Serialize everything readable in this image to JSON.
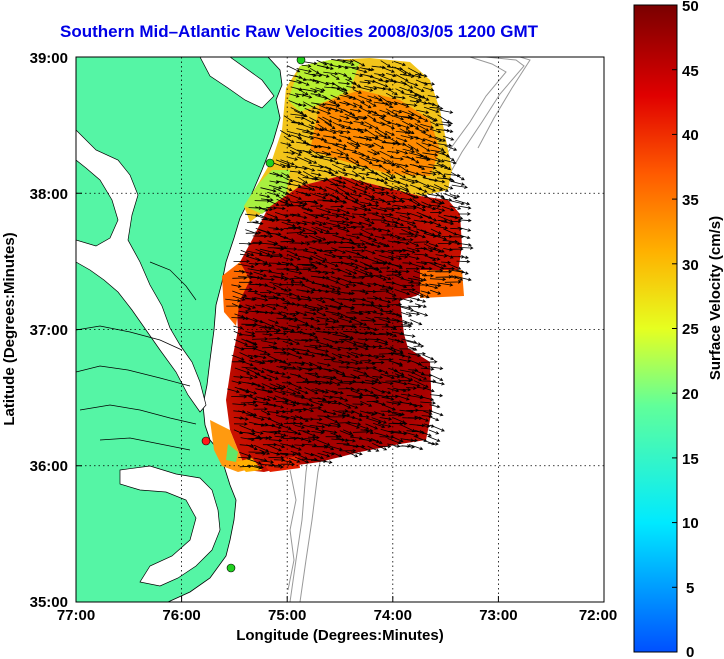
{
  "title": "Southern Mid–Atlantic Raw Velocities 2008/03/05 1200 GMT",
  "x_axis": {
    "label": "Longitude (Degrees:Minutes)",
    "ticks": [
      "77:00",
      "76:00",
      "75:00",
      "74:00",
      "73:00",
      "72:00"
    ]
  },
  "y_axis": {
    "label": "Latitude (Degrees:Minutes)",
    "ticks": [
      "39:00",
      "38:00",
      "37:00",
      "36:00",
      "35:00"
    ]
  },
  "colorbar": {
    "label": "Surface Velocity (cm/s)",
    "ticks": [
      "50",
      "45",
      "40",
      "35",
      "30",
      "25",
      "20",
      "15",
      "10",
      "5",
      "0"
    ],
    "range": [
      0,
      50
    ]
  },
  "colors": {
    "land": "#55f5a5",
    "water": "#ffffff",
    "title": "#0000e6",
    "contours": "#999999",
    "station_green": "#20d020",
    "station_red": "#ff1a1a"
  },
  "chart_data": {
    "type": "heatmap",
    "title": "Southern Mid–Atlantic Raw Velocities 2008/03/05 1200 GMT",
    "xlabel": "Longitude (Degrees:Minutes)",
    "ylabel": "Latitude (Degrees:Minutes)",
    "xlim": [
      -77,
      -72
    ],
    "ylim": [
      35,
      39
    ],
    "color_scale": "jet",
    "color_range_cm_s": [
      0,
      50
    ],
    "grid": true,
    "stations": [
      {
        "lon": -74.88,
        "lat": 38.98,
        "color": "green"
      },
      {
        "lon": -75.15,
        "lat": 38.22,
        "color": "green"
      },
      {
        "lon": -75.75,
        "lat": 36.18,
        "color": "red"
      },
      {
        "lon": -75.53,
        "lat": 35.25,
        "color": "green"
      }
    ]
  }
}
